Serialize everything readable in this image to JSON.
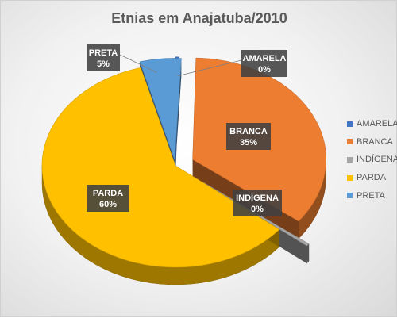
{
  "chart_data": {
    "type": "pie",
    "title": "Etnias em Anajatuba/2010",
    "categories": [
      "AMARELA",
      "BRANCA",
      "INDÍGENA",
      "PARDA",
      "PRETA"
    ],
    "values": [
      0,
      35,
      0,
      60,
      5
    ],
    "data_labels": [
      "0%",
      "35%",
      "0%",
      "60%",
      "5%"
    ],
    "colors": [
      "#4472C4",
      "#ED7D31",
      "#A5A5A5",
      "#FFC000",
      "#5B9BD5"
    ],
    "exploded": true,
    "three_d": true,
    "legend_position": "right"
  }
}
